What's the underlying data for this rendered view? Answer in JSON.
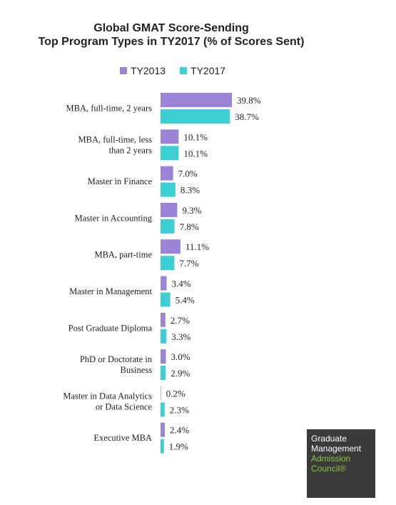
{
  "chart_data": {
    "type": "bar",
    "orientation": "horizontal",
    "title_line1": "Global GMAT Score-Sending",
    "title_line2": "Top Program Types in TY2017 (% of Scores Sent)",
    "legend_position": "top",
    "categories": [
      [
        "MBA, full-time, 2 years"
      ],
      [
        "MBA, full-time, less",
        "than 2 years"
      ],
      [
        "Master in Finance"
      ],
      [
        "Master in Accounting"
      ],
      [
        "MBA, part-time"
      ],
      [
        "Master in Management"
      ],
      [
        "Post Graduate Diploma"
      ],
      [
        "PhD or Doctorate in",
        "Business"
      ],
      [
        "Master in Data Analytics",
        "or Data Science"
      ],
      [
        "Executive MBA"
      ]
    ],
    "series": [
      {
        "name": "TY2013",
        "color": "#9b84d8",
        "values": [
          39.8,
          10.1,
          7.0,
          9.3,
          11.1,
          3.4,
          2.7,
          3.0,
          0.2,
          2.4
        ],
        "labels": [
          "39.8%",
          "10.1%",
          "7.0%",
          "9.3%",
          "11.1%",
          "3.4%",
          "2.7%",
          "3.0%",
          "0.2%",
          "2.4%"
        ]
      },
      {
        "name": "TY2017",
        "color": "#3dcfd3",
        "values": [
          38.7,
          10.1,
          8.3,
          7.8,
          7.7,
          5.4,
          3.3,
          2.9,
          2.3,
          1.9
        ],
        "labels": [
          "38.7%",
          "10.1%",
          "8.3%",
          "7.8%",
          "7.7%",
          "5.4%",
          "3.3%",
          "2.9%",
          "2.3%",
          "1.9%"
        ]
      }
    ],
    "xlim": [
      0,
      45
    ],
    "grid": false
  },
  "logo": {
    "line1": "Graduate",
    "line2": "Management",
    "line3": "Admission",
    "line4": "Council®",
    "bg_color": "#3a3a3a",
    "accent_color": "#8dc63f"
  }
}
